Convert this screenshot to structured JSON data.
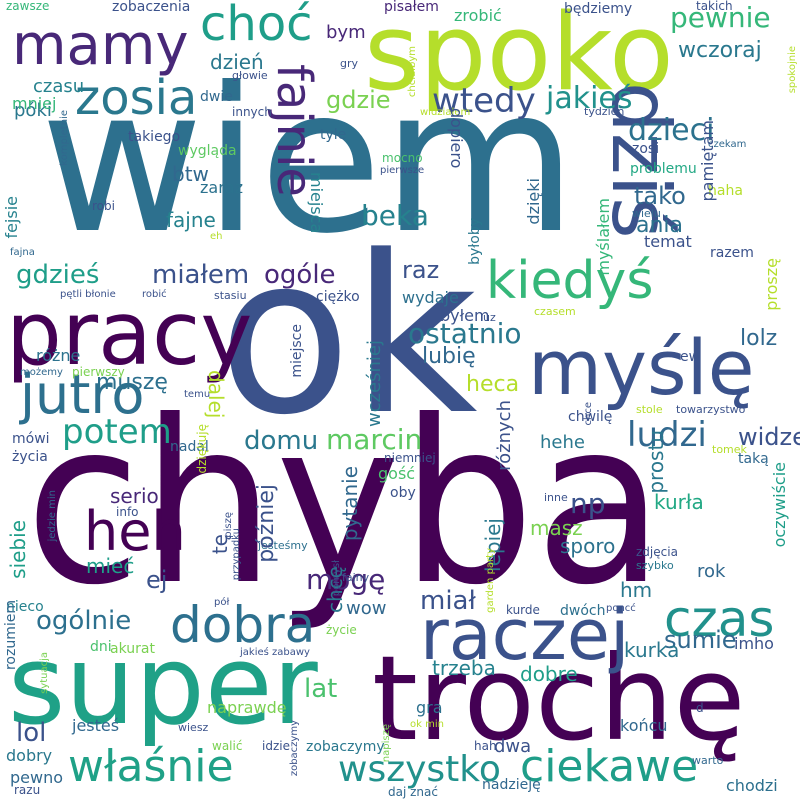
{
  "words": [
    {
      "text": "chyba",
      "color": "#440154",
      "vertical": false
    },
    {
      "text": "wiem",
      "color": "#2d708e",
      "vertical": false
    },
    {
      "text": "ok",
      "color": "#3b528b",
      "vertical": false
    },
    {
      "text": "spoko",
      "color": "#b5de2b",
      "vertical": false
    },
    {
      "text": "trochę",
      "color": "#440154",
      "vertical": false
    },
    {
      "text": "super",
      "color": "#1fa187",
      "vertical": false
    },
    {
      "text": "pracy",
      "color": "#440154",
      "vertical": false
    },
    {
      "text": "dziś",
      "color": "#3b528b",
      "vertical": true
    },
    {
      "text": "myślę",
      "color": "#3b528b",
      "vertical": false
    },
    {
      "text": "raczej",
      "color": "#3b528b",
      "vertical": false
    },
    {
      "text": "mamy",
      "color": "#482878",
      "vertical": false
    },
    {
      "text": "choć",
      "color": "#1f9e89",
      "vertical": false
    },
    {
      "text": "zosia",
      "color": "#2a788e",
      "vertical": false
    },
    {
      "text": "fajnie",
      "color": "#482878",
      "vertical": true
    },
    {
      "text": "jutro",
      "color": "#2d708e",
      "vertical": false
    },
    {
      "text": "kiedyś",
      "color": "#35b779",
      "vertical": false
    },
    {
      "text": "heh",
      "color": "#440154",
      "vertical": false
    },
    {
      "text": "dobra",
      "color": "#2d708e",
      "vertical": false
    },
    {
      "text": "czas",
      "color": "#21918c",
      "vertical": false
    },
    {
      "text": "ciekawe",
      "color": "#1f9e89",
      "vertical": false
    },
    {
      "text": "właśnie",
      "color": "#1fa187",
      "vertical": false
    },
    {
      "text": "wszystko",
      "color": "#21918c",
      "vertical": false
    },
    {
      "text": "potem",
      "color": "#1f9e89",
      "vertical": false
    },
    {
      "text": "ludzi",
      "color": "#31688e",
      "vertical": false
    },
    {
      "text": "marcin",
      "color": "#5ec962",
      "vertical": false
    },
    {
      "text": "ostatnio",
      "color": "#2a788e",
      "vertical": false
    },
    {
      "text": "wtedy",
      "color": "#3b528b",
      "vertical": false
    },
    {
      "text": "jakieś",
      "color": "#21918c",
      "vertical": false
    },
    {
      "text": "dzieci",
      "color": "#2c728e",
      "vertical": false
    },
    {
      "text": "pewnie",
      "color": "#35b779",
      "vertical": false
    },
    {
      "text": "wczoraj",
      "color": "#2a788e",
      "vertical": false
    },
    {
      "text": "dzień",
      "color": "#2a788e",
      "vertical": false
    },
    {
      "text": "czasu",
      "color": "#26828e",
      "vertical": false
    },
    {
      "text": "gdzie",
      "color": "#7ad151",
      "vertical": false
    },
    {
      "text": "beka",
      "color": "#26828e",
      "vertical": false
    },
    {
      "text": "tako",
      "color": "#31688e",
      "vertical": false
    },
    {
      "text": "ania",
      "color": "#2c728e",
      "vertical": false
    },
    {
      "text": "gdzieś",
      "color": "#1f9e89",
      "vertical": false
    },
    {
      "text": "miałem",
      "color": "#3b528b",
      "vertical": false
    },
    {
      "text": "ogóle",
      "color": "#482878",
      "vertical": false
    },
    {
      "text": "raz",
      "color": "#3b528b",
      "vertical": false
    },
    {
      "text": "domu",
      "color": "#2a788e",
      "vertical": false
    },
    {
      "text": "muszę",
      "color": "#2d708e",
      "vertical": false
    },
    {
      "text": "lubię",
      "color": "#31688e",
      "vertical": false
    },
    {
      "text": "heca",
      "color": "#b5de2b",
      "vertical": false
    },
    {
      "text": "hehe",
      "color": "#2a788e",
      "vertical": false
    },
    {
      "text": "widzę",
      "color": "#3b528b",
      "vertical": false
    },
    {
      "text": "lolz",
      "color": "#31688e",
      "vertical": false
    },
    {
      "text": "mogę",
      "color": "#482878",
      "vertical": false
    },
    {
      "text": "lat",
      "color": "#4ac16d",
      "vertical": false
    },
    {
      "text": "lol",
      "color": "#3b528b",
      "vertical": false
    },
    {
      "text": "ogólnie",
      "color": "#2d708e",
      "vertical": false
    },
    {
      "text": "miał",
      "color": "#3b528b",
      "vertical": false
    },
    {
      "text": "sumie",
      "color": "#31688e",
      "vertical": false
    },
    {
      "text": "trzeba",
      "color": "#26828e",
      "vertical": false
    },
    {
      "text": "dobre",
      "color": "#1f9e89",
      "vertical": false
    },
    {
      "text": "kurła",
      "color": "#22a884",
      "vertical": false
    },
    {
      "text": "np",
      "color": "#3b528b",
      "vertical": false
    },
    {
      "text": "serio",
      "color": "#482878",
      "vertical": false
    },
    {
      "text": "ej",
      "color": "#3b528b",
      "vertical": false
    },
    {
      "text": "mieć",
      "color": "#1f9e89",
      "vertical": false
    },
    {
      "text": "wow",
      "color": "#31688e",
      "vertical": false
    },
    {
      "text": "sporo",
      "color": "#2c728e",
      "vertical": false
    },
    {
      "text": "masz",
      "color": "#7ad151",
      "vertical": false
    },
    {
      "text": "hm",
      "color": "#2a788e",
      "vertical": false
    },
    {
      "text": "rok",
      "color": "#31688e",
      "vertical": false
    },
    {
      "text": "kurka",
      "color": "#2a788e",
      "vertical": false
    },
    {
      "text": "imho",
      "color": "#3b528b",
      "vertical": false
    },
    {
      "text": "btw",
      "color": "#31688e",
      "vertical": false
    },
    {
      "text": "fajne",
      "color": "#26828e",
      "vertical": false
    },
    {
      "text": "zaraz",
      "color": "#2c728e",
      "vertical": false
    },
    {
      "text": "wygląda",
      "color": "#5ec962",
      "vertical": false
    },
    {
      "text": "póki",
      "color": "#2a788e",
      "vertical": false
    },
    {
      "text": "mniej",
      "color": "#35b779",
      "vertical": false
    },
    {
      "text": "bym",
      "color": "#482878",
      "vertical": false
    },
    {
      "text": "tyle",
      "color": "#31688e",
      "vertical": false
    },
    {
      "text": "miejsca",
      "color": "#26828e",
      "vertical": true
    },
    {
      "text": "wydaje",
      "color": "#2d708e",
      "vertical": false
    },
    {
      "text": "ciężko",
      "color": "#3b528b",
      "vertical": false
    },
    {
      "text": "byłem",
      "color": "#3b528b",
      "vertical": false
    },
    {
      "text": "temat",
      "color": "#3b528b",
      "vertical": false
    },
    {
      "text": "haha",
      "color": "#b5de2b",
      "vertical": false
    },
    {
      "text": "razem",
      "color": "#3b528b",
      "vertical": false
    },
    {
      "text": "problemu",
      "color": "#22a884",
      "vertical": false
    },
    {
      "text": "zosi",
      "color": "#3b528b",
      "vertical": false
    },
    {
      "text": "różne",
      "color": "#2c728e",
      "vertical": false
    },
    {
      "text": "mówi",
      "color": "#3b528b",
      "vertical": false
    },
    {
      "text": "życia",
      "color": "#3b528b",
      "vertical": false
    },
    {
      "text": "nadal",
      "color": "#31688e",
      "vertical": false
    },
    {
      "text": "gość",
      "color": "#4ac16d",
      "vertical": false
    },
    {
      "text": "oby",
      "color": "#3b528b",
      "vertical": false
    },
    {
      "text": "niemniej",
      "color": "#3b528b",
      "vertical": false
    },
    {
      "text": "chwilę",
      "color": "#3b528b",
      "vertical": false
    },
    {
      "text": "towarzystwo",
      "color": "#3b528b",
      "vertical": false
    },
    {
      "text": "stole",
      "color": "#b5de2b",
      "vertical": false
    },
    {
      "text": "taką",
      "color": "#31688e",
      "vertical": false
    },
    {
      "text": "tomek",
      "color": "#b5de2b",
      "vertical": false
    },
    {
      "text": "zdjęcia",
      "color": "#3b528b",
      "vertical": false
    },
    {
      "text": "szybko",
      "color": "#2a788e",
      "vertical": false
    },
    {
      "text": "inne",
      "color": "#3b528b",
      "vertical": false
    },
    {
      "text": "końcu",
      "color": "#31688e",
      "vertical": false
    },
    {
      "text": "dwa",
      "color": "#3b528b",
      "vertical": false
    },
    {
      "text": "gra",
      "color": "#2d708e",
      "vertical": false
    },
    {
      "text": "naprawdę",
      "color": "#7ad151",
      "vertical": false
    },
    {
      "text": "jesteś",
      "color": "#31688e",
      "vertical": false
    },
    {
      "text": "dobry",
      "color": "#2a788e",
      "vertical": false
    },
    {
      "text": "pewno",
      "color": "#31688e",
      "vertical": false
    },
    {
      "text": "akurat",
      "color": "#7ad151",
      "vertical": false
    },
    {
      "text": "dni",
      "color": "#4ac16d",
      "vertical": false
    },
    {
      "text": "nieco",
      "color": "#26828e",
      "vertical": false
    },
    {
      "text": "chodzi",
      "color": "#2d708e",
      "vertical": false
    },
    {
      "text": "nadzieję",
      "color": "#31688e",
      "vertical": false
    },
    {
      "text": "zobaczymy",
      "color": "#2a788e",
      "vertical": false
    },
    {
      "text": "idzie",
      "color": "#3b528b",
      "vertical": false
    },
    {
      "text": "walić",
      "color": "#7ad151",
      "vertical": false
    },
    {
      "text": "wiesz",
      "color": "#3b528b",
      "vertical": false
    },
    {
      "text": "dwóch",
      "color": "#2d708e",
      "vertical": false
    },
    {
      "text": "kurde",
      "color": "#3b528b",
      "vertical": false
    },
    {
      "text": "pół",
      "color": "#3b528b",
      "vertical": false
    },
    {
      "text": "życie",
      "color": "#7ad151",
      "vertical": false
    },
    {
      "text": "fajny",
      "color": "#3b528b",
      "vertical": false
    },
    {
      "text": "jesteśmy",
      "color": "#2d708e",
      "vertical": false
    },
    {
      "text": "info",
      "color": "#3b528b",
      "vertical": false
    },
    {
      "text": "zawsze",
      "color": "#35b779",
      "vertical": false
    },
    {
      "text": "zobaczenia",
      "color": "#3b528b",
      "vertical": false
    },
    {
      "text": "pisałem",
      "color": "#482878",
      "vertical": false
    },
    {
      "text": "zrobić",
      "color": "#35b779",
      "vertical": false
    },
    {
      "text": "będziemy",
      "color": "#3b528b",
      "vertical": false
    },
    {
      "text": "takich",
      "color": "#3b528b",
      "vertical": false
    },
    {
      "text": "głowie",
      "color": "#3b528b",
      "vertical": false
    },
    {
      "text": "dwie",
      "color": "#31688e",
      "vertical": false
    },
    {
      "text": "gry",
      "color": "#3b528b",
      "vertical": false
    },
    {
      "text": "innych",
      "color": "#3b528b",
      "vertical": false
    },
    {
      "text": "widziałem",
      "color": "#b5de2b",
      "vertical": false
    },
    {
      "text": "tydzień",
      "color": "#3b528b",
      "vertical": false
    },
    {
      "text": "czekam",
      "color": "#31688e",
      "vertical": false
    },
    {
      "text": "takiego",
      "color": "#3b528b",
      "vertical": false
    },
    {
      "text": "mocno",
      "color": "#4ac16d",
      "vertical": false
    },
    {
      "text": "pierwsze",
      "color": "#3b528b",
      "vertical": false
    },
    {
      "text": "robi",
      "color": "#3b528b",
      "vertical": false
    },
    {
      "text": "eh",
      "color": "#b5de2b",
      "vertical": false
    },
    {
      "text": "wielu",
      "color": "#31688e",
      "vertical": false
    },
    {
      "text": "fajna",
      "color": "#31688e",
      "vertical": false
    },
    {
      "text": "pętli błonie",
      "color": "#3b528b",
      "vertical": false
    },
    {
      "text": "robić",
      "color": "#3b528b",
      "vertical": false
    },
    {
      "text": "stasiu",
      "color": "#3b528b",
      "vertical": false
    },
    {
      "text": "czasem",
      "color": "#b5de2b",
      "vertical": false
    },
    {
      "text": "luz",
      "color": "#3b528b",
      "vertical": false
    },
    {
      "text": "możemy",
      "color": "#31688e",
      "vertical": false
    },
    {
      "text": "pierwszy",
      "color": "#7ad151",
      "vertical": false
    },
    {
      "text": "temu",
      "color": "#3b528b",
      "vertical": false
    },
    {
      "text": "jakieś zabawy",
      "color": "#3b528b",
      "vertical": false
    },
    {
      "text": "daj znać",
      "color": "#31688e",
      "vertical": false
    },
    {
      "text": "ok min",
      "color": "#b5de2b",
      "vertical": false
    },
    {
      "text": "hah",
      "color": "#3b528b",
      "vertical": false
    },
    {
      "text": "d",
      "color": "#3b528b",
      "vertical": false
    },
    {
      "text": "warto",
      "color": "#31688e",
      "vertical": false
    },
    {
      "text": "poncć",
      "color": "#3b528b",
      "vertical": false
    },
    {
      "text": "razu",
      "color": "#3b528b",
      "vertical": false
    },
    {
      "text": "ew",
      "color": "#3b528b",
      "vertical": false
    },
    {
      "text": "prostu",
      "color": "#2a788e",
      "vertical": true
    },
    {
      "text": "różnych",
      "color": "#3b528b",
      "vertical": true
    },
    {
      "text": "lepiej",
      "color": "#2a788e",
      "vertical": true
    },
    {
      "text": "wcześniej",
      "color": "#2a788e",
      "vertical": true
    },
    {
      "text": "dalej",
      "color": "#b5de2b",
      "vertical": true
    },
    {
      "text": "później",
      "color": "#3b528b",
      "vertical": true
    },
    {
      "text": "chcę",
      "color": "#2a788e",
      "vertical": true
    },
    {
      "text": "pytanie",
      "color": "#31688e",
      "vertical": true
    },
    {
      "text": "siebie",
      "color": "#1f9e89",
      "vertical": true
    },
    {
      "text": "tę",
      "color": "#3b528b",
      "vertical": true
    },
    {
      "text": "dzięki",
      "color": "#31688e",
      "vertical": true
    },
    {
      "text": "dopiero",
      "color": "#3b528b",
      "vertical": true
    },
    {
      "text": "pamiętam",
      "color": "#3b528b",
      "vertical": true
    },
    {
      "text": "myślałem",
      "color": "#35b779",
      "vertical": true
    },
    {
      "text": "proszę",
      "color": "#b5de2b",
      "vertical": true
    },
    {
      "text": "oczywiście",
      "color": "#1f9e89",
      "vertical": true
    },
    {
      "text": "fejsie",
      "color": "#26828e",
      "vertical": true
    },
    {
      "text": "miejsce",
      "color": "#3b528b",
      "vertical": true
    },
    {
      "text": "byłoby",
      "color": "#2a788e",
      "vertical": true
    },
    {
      "text": "dziękuję",
      "color": "#b5de2b",
      "vertical": true
    },
    {
      "text": "rozumiem",
      "color": "#31688e",
      "vertical": true
    },
    {
      "text": "sytuacja",
      "color": "#7ad151",
      "vertical": true
    },
    {
      "text": "kompletnie",
      "color": "#31688e",
      "vertical": true
    },
    {
      "text": "chciałbym",
      "color": "#b5de2b",
      "vertical": true
    },
    {
      "text": "spokojnie",
      "color": "#b5de2b",
      "vertical": true
    },
    {
      "text": "jedzie min",
      "color": "#31688e",
      "vertical": true
    },
    {
      "text": "piszę",
      "color": "#3b528b",
      "vertical": true
    },
    {
      "text": "przypadku",
      "color": "#3b528b",
      "vertical": true
    },
    {
      "text": "pomysł",
      "color": "#3b528b",
      "vertical": true
    },
    {
      "text": "garden party",
      "color": "#b5de2b",
      "vertical": true
    },
    {
      "text": "napiszę",
      "color": "#7ad151",
      "vertical": true
    },
    {
      "text": "zobaczymy",
      "color": "#3b528b",
      "vertical": true
    },
    {
      "text": "chce",
      "color": "#3b528b",
      "vertical": true
    }
  ]
}
